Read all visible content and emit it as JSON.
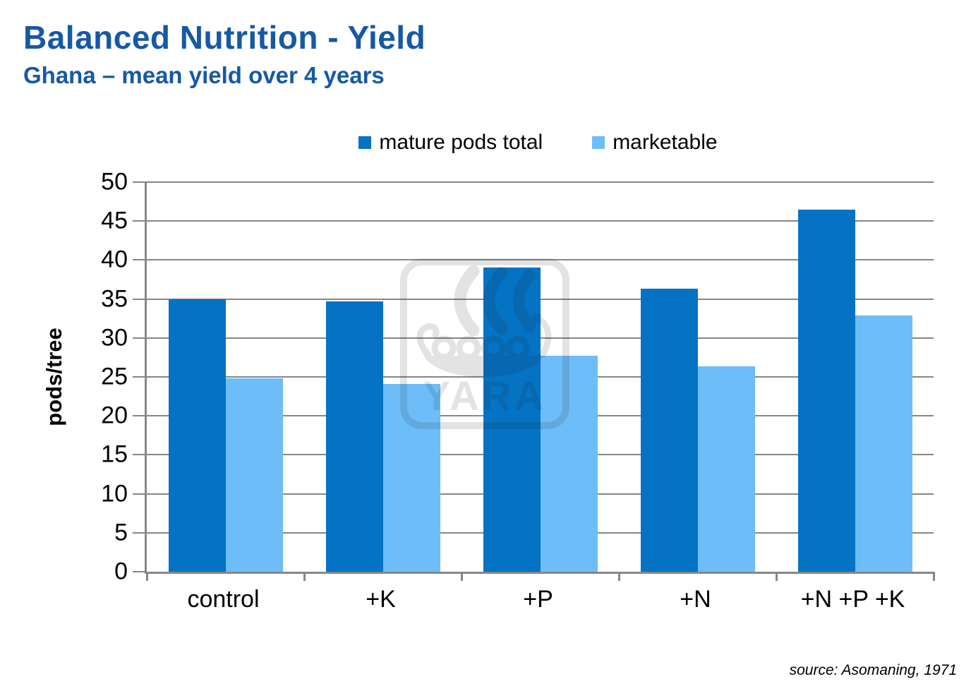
{
  "header": {
    "title": "Balanced Nutrition - Yield",
    "subtitle": "Ghana – mean yield over 4 years"
  },
  "source_note": "source: Asomaning, 1971",
  "watermark_text": "YARA",
  "chart_data": {
    "type": "bar",
    "title": "Balanced Nutrition - Yield",
    "subtitle": "Ghana – mean yield over 4 years",
    "categories": [
      "control",
      "+K",
      "+P",
      "+N",
      "+N +P +K"
    ],
    "series": [
      {
        "name": "mature pods total",
        "color": "#0473C4",
        "values": [
          35.0,
          34.7,
          39.0,
          36.3,
          46.5
        ]
      },
      {
        "name": "marketable",
        "color": "#6CBDF8",
        "values": [
          24.8,
          24.1,
          27.7,
          26.4,
          32.9
        ]
      }
    ],
    "xlabel": "",
    "ylabel": "pods/tree",
    "ylim": [
      0,
      50
    ],
    "ytick_step": 5,
    "grid": true,
    "legend_position": "top",
    "gridline_color": "#878787"
  }
}
